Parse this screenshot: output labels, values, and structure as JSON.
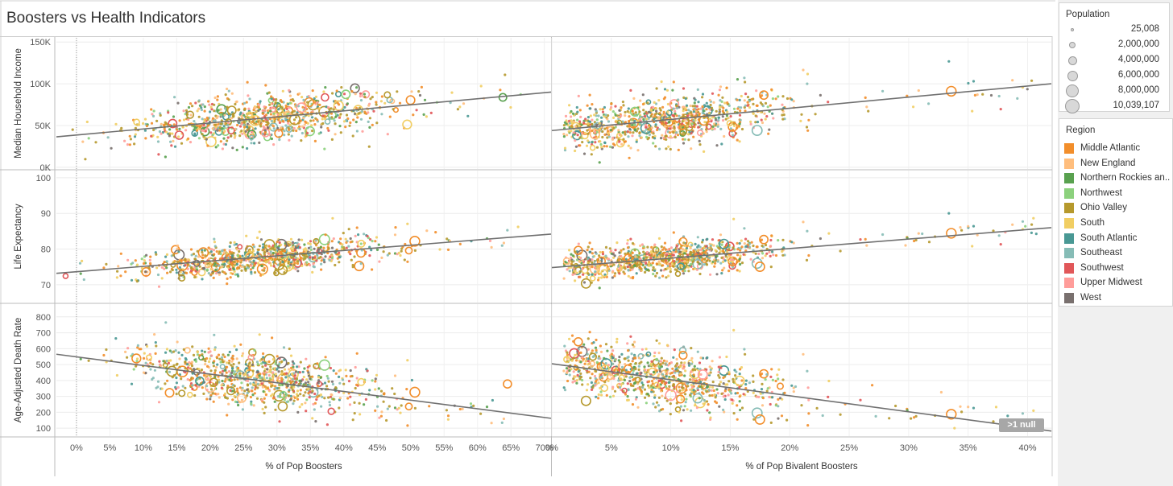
{
  "title": "Boosters vs Health Indicators",
  "chart_data": {
    "type": "scatter",
    "columns": [
      {
        "id": "boosters",
        "xlabel": "% of Pop Boosters",
        "xlim": [
          -3,
          71
        ],
        "ticks": [
          0,
          5,
          10,
          15,
          20,
          25,
          30,
          35,
          40,
          45,
          50,
          55,
          60,
          65,
          70
        ],
        "tick_labels": [
          "0%",
          "5%",
          "10%",
          "15%",
          "20%",
          "25%",
          "30%",
          "35%",
          "40%",
          "45%",
          "50%",
          "55%",
          "60%",
          "65%",
          "70%"
        ]
      },
      {
        "id": "bivalent",
        "xlabel": "% of Pop Bivalent Boosters",
        "xlim": [
          0,
          42
        ],
        "ticks": [
          0,
          5,
          10,
          15,
          20,
          25,
          30,
          35,
          40
        ],
        "tick_labels": [
          "0%",
          "5%",
          "10%",
          "15%",
          "20%",
          "25%",
          "30%",
          "35%",
          "40%"
        ]
      }
    ],
    "rows": [
      {
        "id": "income",
        "ylabel": "Median Household Income",
        "ylim": [
          -2000,
          155000
        ],
        "ticks": [
          0,
          50000,
          100000,
          150000
        ],
        "tick_labels": [
          "0K",
          "50K",
          "100K",
          "150K"
        ],
        "trend": {
          "boosters": [
            [
              -3,
              36500
            ],
            [
              71,
              90000
            ]
          ],
          "bivalent": [
            [
              0,
              44000
            ],
            [
              42,
              100000
            ]
          ]
        },
        "cloud": {
          "boosters": {
            "xc": 27,
            "xs": 9,
            "yc": 57000,
            "ys": 14000,
            "slope": 700
          },
          "bivalent": {
            "xc": 9,
            "xs": 5,
            "yc": 56000,
            "ys": 14000,
            "slope": 1300
          }
        }
      },
      {
        "id": "life",
        "ylabel": "Life Expectancy",
        "ylim": [
          65,
          102
        ],
        "ticks": [
          70,
          80,
          90,
          100
        ],
        "tick_labels": [
          "70",
          "80",
          "90",
          "100"
        ],
        "trend": {
          "boosters": [
            [
              -3,
              73.2
            ],
            [
              71,
              84.2
            ]
          ],
          "bivalent": [
            [
              0,
              74.8
            ],
            [
              42,
              86
            ]
          ]
        },
        "cloud": {
          "boosters": {
            "xc": 27,
            "xs": 9,
            "yc": 77.5,
            "ys": 2.2,
            "slope": 0.15
          },
          "bivalent": {
            "xc": 9,
            "xs": 5,
            "yc": 77.3,
            "ys": 2.2,
            "slope": 0.27
          }
        }
      },
      {
        "id": "death",
        "ylabel": "Age-Adjusted Death Rate",
        "ylim": [
          50,
          880
        ],
        "ticks": [
          100,
          200,
          300,
          400,
          500,
          600,
          700,
          800
        ],
        "tick_labels": [
          "100",
          "200",
          "300",
          "400",
          "500",
          "600",
          "700",
          "800"
        ],
        "trend": {
          "boosters": [
            [
              -3,
              565
            ],
            [
              71,
              162
            ]
          ],
          "bivalent": [
            [
              0,
              505
            ],
            [
              42,
              82
            ]
          ]
        },
        "cloud": {
          "boosters": {
            "xc": 27,
            "xs": 9,
            "yc": 410,
            "ys": 85,
            "slope": -5.4
          },
          "bivalent": {
            "xc": 9,
            "xs": 5,
            "yc": 415,
            "ys": 85,
            "slope": -10
          }
        }
      }
    ],
    "regions": [
      {
        "name": "Middle Atlantic",
        "color": "#f28e2b",
        "weight": 18
      },
      {
        "name": "New England",
        "color": "#ffbe7d",
        "weight": 7
      },
      {
        "name": "Northern Rockies an..",
        "color": "#59a14f",
        "weight": 6
      },
      {
        "name": "Northwest",
        "color": "#8cd17d",
        "weight": 4
      },
      {
        "name": "Ohio Valley",
        "color": "#b6992d",
        "weight": 18
      },
      {
        "name": "South",
        "color": "#f1ce63",
        "weight": 14
      },
      {
        "name": "South Atlantic",
        "color": "#499894",
        "weight": 7
      },
      {
        "name": "Southeast",
        "color": "#86bcb6",
        "weight": 10
      },
      {
        "name": "Southwest",
        "color": "#e15759",
        "weight": 6
      },
      {
        "name": "Upper Midwest",
        "color": "#ff9d9a",
        "weight": 6
      },
      {
        "name": "West",
        "color": "#79706e",
        "weight": 4
      }
    ],
    "points_per_panel": 900,
    "null_badge": ">1 null"
  },
  "legend": {
    "population_title": "Population",
    "population_sizes": [
      "25,008",
      "2,000,000",
      "4,000,000",
      "6,000,000",
      "8,000,000",
      "10,039,107"
    ],
    "region_title": "Region"
  }
}
